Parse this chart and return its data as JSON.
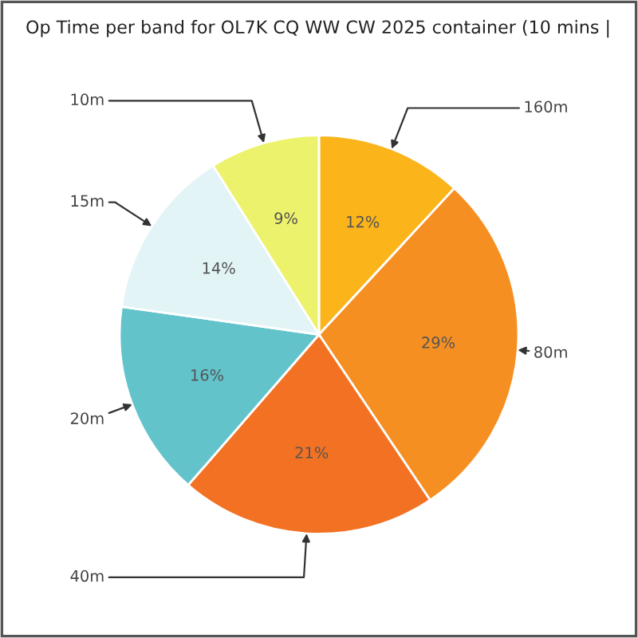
{
  "chart_data": {
    "type": "pie",
    "title": "Op Time per band for OL7K CQ WW CW 2025 container (10 mins |",
    "categories": [
      "160m",
      "80m",
      "40m",
      "20m",
      "15m",
      "10m"
    ],
    "values": [
      12,
      29,
      21,
      16,
      14,
      9
    ],
    "value_labels": [
      "12%",
      "29%",
      "21%",
      "16%",
      "14%",
      "9%"
    ],
    "colors": [
      "#fbb41a",
      "#f68f22",
      "#f27122",
      "#62c3cb",
      "#e3f4f7",
      "#edf26c"
    ],
    "legend": false
  }
}
